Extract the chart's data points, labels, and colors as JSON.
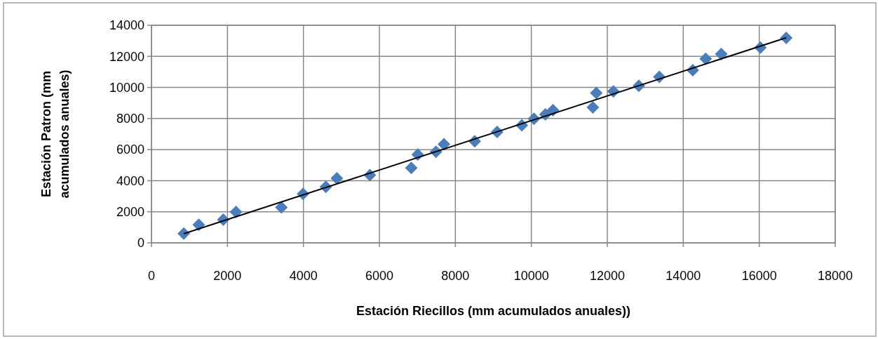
{
  "chart_data": {
    "type": "scatter",
    "xlabel": "Estación Riecillos (mm acumulados anuales))",
    "ylabel": "Estación Patron (mm acumulados anuales)",
    "xlim": [
      0,
      18000
    ],
    "xticks": [
      0,
      2000,
      4000,
      6000,
      8000,
      10000,
      12000,
      14000,
      16000,
      18000
    ],
    "ylim": [
      0,
      14000
    ],
    "yticks": [
      0,
      2000,
      4000,
      6000,
      8000,
      10000,
      12000,
      14000
    ],
    "grid": true,
    "series": [
      {
        "color": "#4a7ebb",
        "marker": "diamond",
        "x": [
          850,
          1245,
          1890,
          2225,
          3420,
          3990,
          4590,
          4880,
          5750,
          6840,
          7010,
          7490,
          7700,
          8510,
          9100,
          9750,
          10070,
          10370,
          10570,
          11620,
          11710,
          12160,
          12830,
          13370,
          14250,
          14590,
          15000,
          16030,
          16710
        ],
        "values": [
          600,
          1160,
          1490,
          1990,
          2280,
          3150,
          3600,
          4150,
          4360,
          4820,
          5680,
          5860,
          6340,
          6540,
          7130,
          7560,
          7980,
          8260,
          8540,
          8720,
          9640,
          9740,
          10100,
          10680,
          11110,
          11840,
          12150,
          12570,
          13190
        ]
      },
      {
        "type": "line",
        "color": "#000000",
        "marker": "none",
        "line_style": "solid",
        "x": [
          850,
          16710
        ],
        "values": [
          590,
          13200
        ]
      }
    ]
  }
}
